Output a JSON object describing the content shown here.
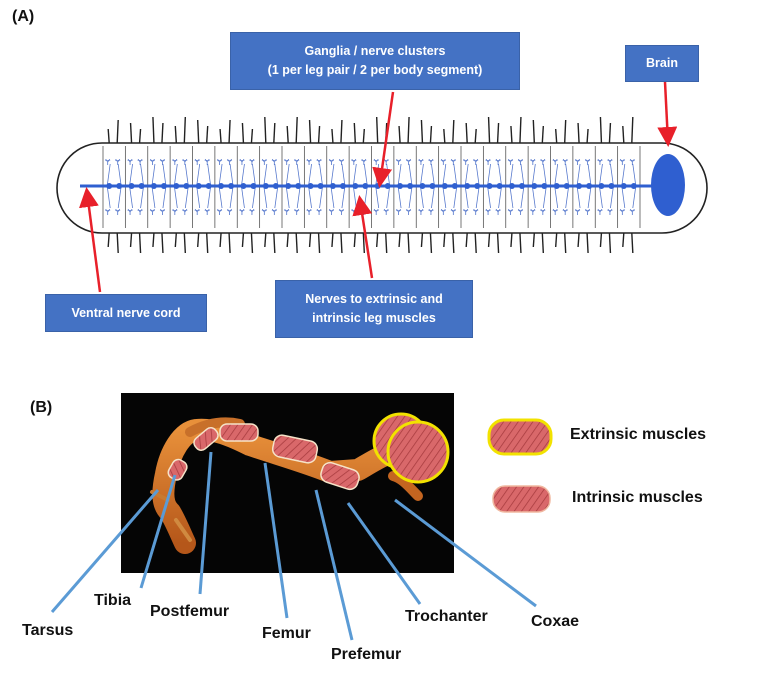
{
  "panel_a": {
    "label": "(A)",
    "callouts": {
      "ganglia_line1": "Ganglia / nerve clusters",
      "ganglia_line2": "(1 per leg pair / 2 per body segment)",
      "brain": "Brain",
      "ventral_nerve_cord": "Ventral nerve cord",
      "nerves_line1": "Nerves to extrinsic and",
      "nerves_line2": "intrinsic leg muscles"
    }
  },
  "panel_b": {
    "label": "(B)",
    "leg_segments": {
      "tarsus": "Tarsus",
      "tibia": "Tibia",
      "postfemur": "Postfemur",
      "femur": "Femur",
      "prefemur": "Prefemur",
      "trochanter": "Trochanter",
      "coxae": "Coxae"
    },
    "legend": {
      "extrinsic": "Extrinsic muscles",
      "intrinsic": "Intrinsic muscles"
    }
  },
  "colors": {
    "callout_fill": "#4472c4",
    "arrow": "#e8202a",
    "nerve_blue": "#2f5fd0",
    "pointer_blue": "#5b9bd5",
    "extrinsic_outline": "#f2e200",
    "muscle": "#d9686a"
  }
}
